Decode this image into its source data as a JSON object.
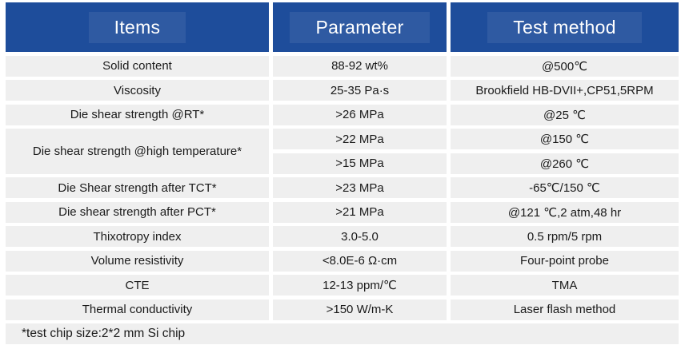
{
  "table": {
    "headers": {
      "items": "Items",
      "parameter": "Parameter",
      "test_method": "Test method"
    },
    "rows": [
      {
        "item": "Solid content",
        "parameter": "88-92 wt%",
        "method": "@500℃"
      },
      {
        "item": "Viscosity",
        "parameter": "25-35 Pa·s",
        "method": "Brookfield HB-DVII+,CP51,5RPM"
      },
      {
        "item": "Die shear strength @RT*",
        "parameter": ">26 MPa",
        "method": "@25 ℃"
      },
      {
        "item": "Die shear strength @high temperature*",
        "item_rowspan": 2,
        "parameter": ">22 MPa",
        "method": "@150 ℃"
      },
      {
        "parameter": ">15 MPa",
        "method": "@260 ℃"
      },
      {
        "item": "Die Shear strength after TCT*",
        "parameter": ">23 MPa",
        "method": "-65℃/150 ℃"
      },
      {
        "item": "Die shear strength after PCT*",
        "parameter": ">21 MPa",
        "method": "@121 ℃,2 atm,48 hr"
      },
      {
        "item": "Thixotropy index",
        "parameter": "3.0-5.0",
        "method": "0.5 rpm/5 rpm"
      },
      {
        "item": "Volume resistivity",
        "parameter": "<8.0E-6 Ω·cm",
        "method": "Four-point probe"
      },
      {
        "item": "CTE",
        "parameter": "12-13 ppm/℃",
        "method": "TMA"
      },
      {
        "item": "Thermal conductivity",
        "parameter": ">150 W/m-K",
        "method": "Laser flash method"
      }
    ],
    "footnote": "*test chip size:2*2 mm Si chip",
    "colors": {
      "header_bg": "#1E4D9B",
      "header_text": "#FFFFFF",
      "row_bg": "#EFEFEF",
      "gap_bg": "#FFFFFF",
      "text": "#1A1A1A"
    }
  }
}
